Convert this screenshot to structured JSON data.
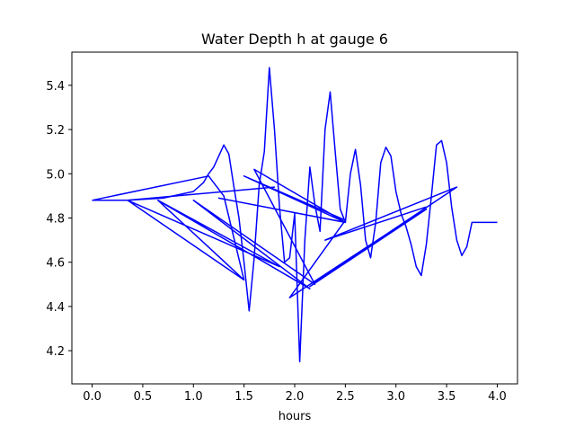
{
  "chart_data": {
    "type": "line",
    "title": "Water Depth h at gauge 6",
    "xlabel": "hours",
    "ylabel": "",
    "xlim": [
      -0.2,
      4.2
    ],
    "ylim": [
      4.05,
      5.55
    ],
    "xticks": [
      0.0,
      0.5,
      1.0,
      1.5,
      2.0,
      2.5,
      3.0,
      3.5,
      4.0
    ],
    "xtick_labels": [
      "0.0",
      "0.5",
      "1.0",
      "1.5",
      "2.0",
      "2.5",
      "3.0",
      "3.5",
      "4.0"
    ],
    "yticks": [
      4.2,
      4.4,
      4.6,
      4.8,
      5.0,
      5.2,
      5.4
    ],
    "ytick_labels": [
      "4.2",
      "4.4",
      "4.6",
      "4.8",
      "5.0",
      "5.2",
      "5.4"
    ],
    "grid": false,
    "series": [
      {
        "color": "#0000ff",
        "x": [
          0.0,
          0.35,
          0.7,
          1.0,
          1.1,
          1.15,
          1.2,
          1.25,
          1.3,
          1.35,
          1.4,
          1.45,
          1.5,
          1.55,
          1.6,
          1.65,
          1.7,
          1.75,
          1.8,
          1.85,
          1.9,
          1.95,
          2.0,
          2.05,
          2.1,
          2.15,
          2.2,
          2.25,
          2.3,
          2.35,
          2.4,
          2.45,
          2.5,
          2.55,
          2.6,
          2.65,
          2.7,
          2.75,
          2.8,
          2.85,
          2.9,
          2.95,
          3.0,
          3.05,
          3.1,
          3.15,
          3.2,
          3.25,
          3.3,
          3.35,
          3.4,
          3.45,
          3.5,
          3.55,
          3.6,
          3.65,
          3.7,
          3.75,
          3.8,
          3.85,
          3.9,
          3.95,
          4.0
        ],
        "y": [
          4.88,
          4.88,
          4.89,
          4.92,
          4.96,
          5.0,
          5.03,
          5.08,
          5.13,
          5.09,
          4.94,
          4.8,
          4.6,
          4.38,
          4.62,
          4.95,
          5.1,
          5.48,
          5.2,
          4.85,
          4.6,
          4.62,
          4.82,
          4.15,
          4.7,
          5.03,
          4.86,
          4.74,
          5.2,
          5.37,
          5.1,
          4.84,
          4.78,
          5.0,
          5.11,
          4.95,
          4.7,
          4.62,
          4.78,
          5.05,
          5.12,
          5.08,
          4.92,
          4.82,
          4.76,
          4.68,
          4.58,
          4.54,
          4.68,
          4.9,
          5.13,
          5.15,
          5.05,
          4.85,
          4.7,
          4.63,
          4.67,
          4.78,
          4.78,
          4.78,
          4.78,
          4.78,
          4.78
        ]
      },
      {
        "color": "#0000ff",
        "x": [
          0.0,
          1.15,
          1.3,
          1.5,
          0.35,
          1.8,
          0.35,
          1.85,
          0.65,
          1.5,
          0.65,
          2.15,
          1.0,
          2.2,
          1.6,
          2.5,
          1.25,
          2.5,
          1.5,
          2.5,
          1.95,
          3.25,
          2.15,
          3.3,
          2.2,
          3.6,
          2.3,
          3.3
        ],
        "y": [
          4.88,
          4.99,
          4.9,
          4.52,
          4.88,
          4.94,
          4.88,
          4.58,
          4.88,
          4.52,
          4.88,
          4.48,
          4.88,
          4.5,
          5.02,
          4.78,
          4.89,
          4.78,
          4.99,
          4.79,
          4.44,
          4.83,
          4.49,
          4.84,
          4.51,
          4.94,
          4.7,
          4.85
        ]
      }
    ]
  }
}
